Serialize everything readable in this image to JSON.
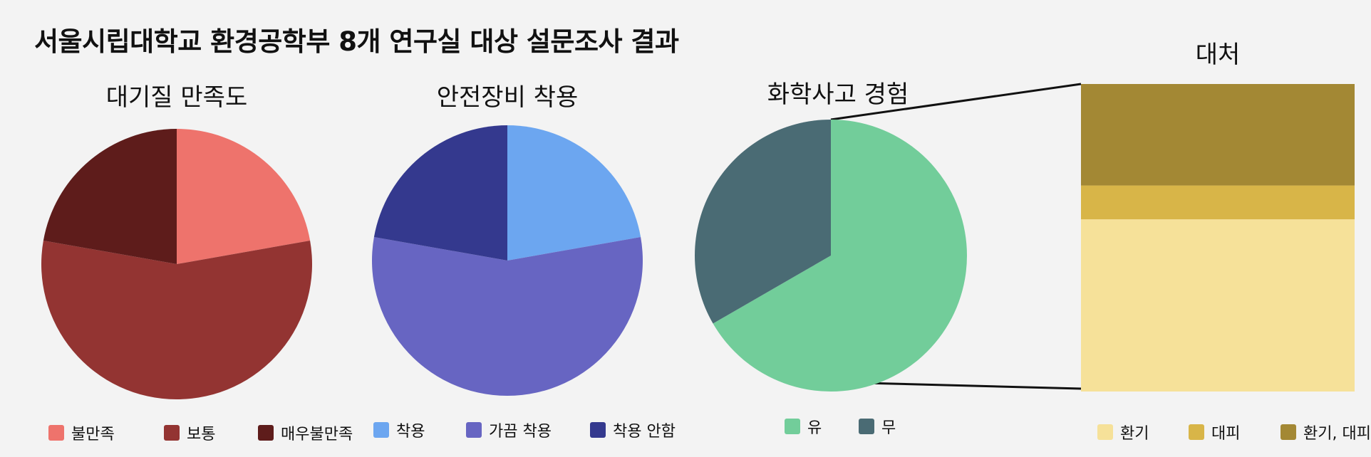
{
  "title": "서울시립대학교 환경공학부 8개 연구실 대상 설문조사 결과",
  "chart_data": [
    {
      "type": "pie",
      "title": "대기질 만족도",
      "categories": [
        "불만족",
        "보통",
        "매우불만족"
      ],
      "values": [
        2,
        5,
        2
      ],
      "colors": [
        "#ee736c",
        "#933432",
        "#5e1c1b"
      ]
    },
    {
      "type": "pie",
      "title": "안전장비 착용",
      "categories": [
        "착용",
        "가끔 착용",
        "착용 안함"
      ],
      "values": [
        2,
        5,
        2
      ],
      "colors": [
        "#6ca6f0",
        "#6765c2",
        "#34398e"
      ]
    },
    {
      "type": "pie",
      "title": "화학사고 경험",
      "categories": [
        "유",
        "무"
      ],
      "values": [
        2,
        1
      ],
      "colors": [
        "#72cd9a",
        "#4a6b74"
      ]
    },
    {
      "type": "bar",
      "stacked": true,
      "title": "대처",
      "categories": [
        "환기",
        "대피",
        "환기, 대피"
      ],
      "values": [
        0.56,
        0.11,
        0.33
      ],
      "colors": [
        "#f6e199",
        "#d8b548",
        "#a38834"
      ]
    }
  ]
}
